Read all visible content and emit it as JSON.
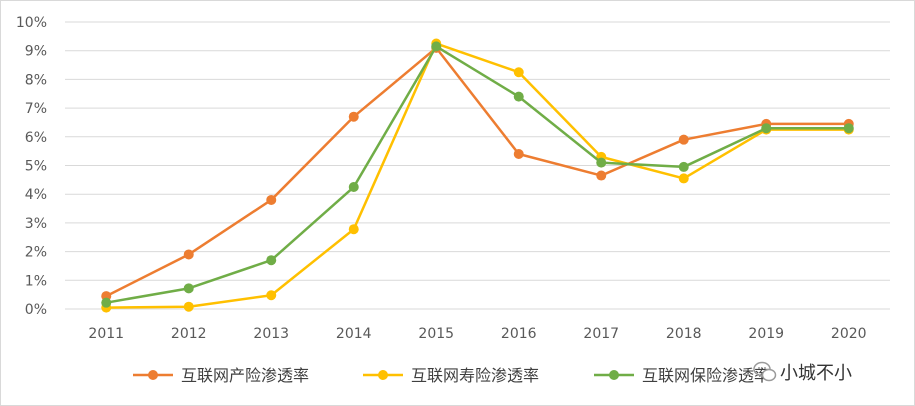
{
  "chart_data": {
    "type": "line",
    "x": [
      "2011",
      "2012",
      "2013",
      "2014",
      "2015",
      "2016",
      "2017",
      "2018",
      "2019",
      "2020"
    ],
    "y_ticks": [
      "0%",
      "1%",
      "2%",
      "3%",
      "4%",
      "5%",
      "6%",
      "7%",
      "8%",
      "9%",
      "10%"
    ],
    "ylim": [
      0,
      10
    ],
    "y_unit": "%",
    "grid": true,
    "legend_position": "bottom",
    "series": [
      {
        "name": "互联网产险渗透率",
        "color": "#ED7D31",
        "values": [
          0.45,
          1.9,
          3.8,
          6.7,
          9.1,
          5.4,
          4.65,
          5.9,
          6.45,
          6.45
        ]
      },
      {
        "name": "互联网寿险渗透率",
        "color": "#FFC000",
        "values": [
          0.05,
          0.08,
          0.48,
          2.78,
          9.25,
          8.25,
          5.3,
          4.55,
          6.25,
          6.25
        ]
      },
      {
        "name": "互联网保险渗透率",
        "color": "#70AD47",
        "values": [
          0.22,
          0.72,
          1.7,
          4.25,
          9.15,
          7.4,
          5.1,
          4.95,
          6.3,
          6.3
        ]
      }
    ]
  },
  "watermark": {
    "text": "小城不小",
    "icon": "wechat-icon"
  }
}
